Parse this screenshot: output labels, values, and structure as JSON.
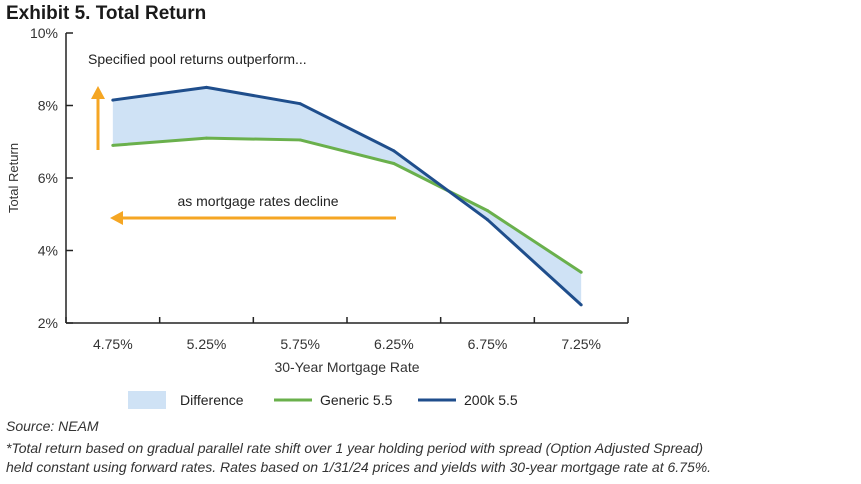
{
  "header": {
    "title": "Exhibit 5. Total Return"
  },
  "footer": {
    "source": "Source: NEAM",
    "note_line1": "*Total return based on gradual parallel rate shift over 1 year holding period with spread (Option Adjusted Spread)",
    "note_line2": "held constant using forward rates. Rates based on 1/31/24 prices and yields with 30-year mortgage rate at 6.75%."
  },
  "chart_data": {
    "type": "line",
    "title": "Exhibit 5. Total Return",
    "xlabel": "30-Year Mortgage Rate",
    "ylabel": "Total Return",
    "categories": [
      "4.75%",
      "5.25%",
      "5.75%",
      "6.25%",
      "6.75%",
      "7.25%"
    ],
    "y_ticks": [
      "2%",
      "4%",
      "6%",
      "8%",
      "10%"
    ],
    "ylim": [
      2,
      10
    ],
    "series": [
      {
        "name": "Generic 5.5",
        "color": "#6ab04c",
        "values": [
          6.9,
          7.1,
          7.05,
          6.4,
          5.1,
          3.4
        ]
      },
      {
        "name": "200k 5.5",
        "color": "#1f4e8c",
        "values": [
          8.15,
          8.5,
          8.05,
          6.75,
          4.85,
          2.5
        ]
      }
    ],
    "fill": {
      "name": "Difference",
      "color": "#cfe2f5"
    },
    "annotations": [
      {
        "text": "Specified pool returns outperform...",
        "arrow": "up",
        "arrow_color": "#f5a623"
      },
      {
        "text": "as mortgage rates decline",
        "arrow": "left",
        "arrow_color": "#f5a623"
      }
    ],
    "legend": {
      "position": "bottom"
    },
    "grid": false
  }
}
